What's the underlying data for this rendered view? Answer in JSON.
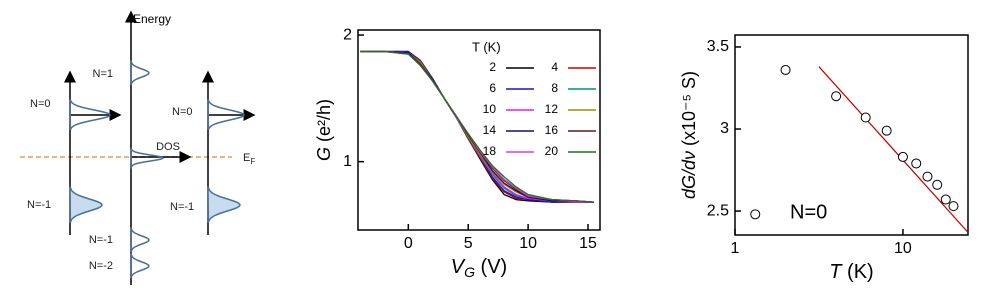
{
  "diagram": {
    "axis_label": "Energy",
    "left": {
      "upper": "N=0",
      "lower": "N=-1"
    },
    "center": {
      "top": "N=1",
      "axis": "DOS",
      "bottom1": "N=-1",
      "bottom2": "N=-2"
    },
    "right": {
      "upper": "N=0",
      "lower": "N=-1"
    },
    "fermi": {
      "symbol": "E",
      "sub": "F"
    }
  },
  "chart_data": [
    {
      "type": "line",
      "xlabel": {
        "symbol": "V",
        "sub": "G",
        "rest": " (V)"
      },
      "ylabel": {
        "symbol": "G",
        "rest": " (e²/h)"
      },
      "legend_title": "T (K)",
      "legend": "upper right",
      "x": [
        -4,
        -2,
        0,
        1,
        2,
        3,
        4,
        5,
        6,
        7,
        8,
        9,
        10,
        12,
        14,
        15.5
      ],
      "xlim": [
        -4.2,
        16
      ],
      "ylim": [
        0.46,
        2.04
      ],
      "xticks": [
        0,
        5,
        10,
        15
      ],
      "yticks": [
        1,
        2
      ],
      "series": [
        {
          "name": "2",
          "color": "#000000",
          "values": [
            1.87,
            1.87,
            1.87,
            1.8,
            1.66,
            1.5,
            1.35,
            1.18,
            1.02,
            0.86,
            0.74,
            0.7,
            0.69,
            0.68,
            0.68,
            0.68
          ]
        },
        {
          "name": "4",
          "color": "#d40000",
          "values": [
            1.87,
            1.87,
            1.87,
            1.8,
            1.66,
            1.5,
            1.35,
            1.18,
            1.03,
            0.87,
            0.76,
            0.71,
            0.7,
            0.68,
            0.68,
            0.68
          ]
        },
        {
          "name": "6",
          "color": "#1414c8",
          "values": [
            1.87,
            1.87,
            1.87,
            1.79,
            1.66,
            1.5,
            1.35,
            1.19,
            1.04,
            0.88,
            0.77,
            0.72,
            0.7,
            0.68,
            0.68,
            0.68
          ]
        },
        {
          "name": "8",
          "color": "#008b8b",
          "values": [
            1.87,
            1.87,
            1.86,
            1.79,
            1.65,
            1.5,
            1.35,
            1.19,
            1.04,
            0.9,
            0.79,
            0.73,
            0.71,
            0.69,
            0.68,
            0.68
          ]
        },
        {
          "name": "10",
          "color": "#e020e0",
          "values": [
            1.87,
            1.87,
            1.86,
            1.78,
            1.65,
            1.5,
            1.35,
            1.2,
            1.05,
            0.91,
            0.8,
            0.74,
            0.71,
            0.69,
            0.68,
            0.68
          ]
        },
        {
          "name": "12",
          "color": "#a08c00",
          "values": [
            1.87,
            1.87,
            1.86,
            1.78,
            1.65,
            1.5,
            1.36,
            1.2,
            1.06,
            0.92,
            0.82,
            0.76,
            0.72,
            0.69,
            0.69,
            0.68
          ]
        },
        {
          "name": "14",
          "color": "#14145a",
          "values": [
            1.87,
            1.87,
            1.86,
            1.77,
            1.65,
            1.5,
            1.36,
            1.21,
            1.07,
            0.93,
            0.83,
            0.77,
            0.72,
            0.69,
            0.69,
            0.68
          ]
        },
        {
          "name": "16",
          "color": "#5a1e1e",
          "values": [
            1.87,
            1.87,
            1.85,
            1.77,
            1.64,
            1.5,
            1.36,
            1.21,
            1.07,
            0.95,
            0.85,
            0.78,
            0.73,
            0.7,
            0.69,
            0.68
          ]
        },
        {
          "name": "18",
          "color": "#e040c8",
          "values": [
            1.87,
            1.87,
            1.85,
            1.76,
            1.64,
            1.5,
            1.36,
            1.22,
            1.08,
            0.96,
            0.86,
            0.79,
            0.73,
            0.7,
            0.69,
            0.68
          ]
        },
        {
          "name": "20",
          "color": "#207020",
          "values": [
            1.87,
            1.87,
            1.85,
            1.76,
            1.64,
            1.5,
            1.36,
            1.22,
            1.09,
            0.97,
            0.88,
            0.8,
            0.74,
            0.7,
            0.69,
            0.68
          ]
        }
      ]
    },
    {
      "type": "scatter",
      "log_x": true,
      "xlabel": {
        "symbol": "T",
        "rest": " (K)"
      },
      "ylabel": {
        "symbol": "dG/dν",
        "rest": " (x10⁻⁵ S)"
      },
      "annotation": "N=0",
      "x": [
        1.32,
        2,
        4,
        6,
        8,
        10,
        12,
        14,
        16,
        18,
        20
      ],
      "y": [
        2.48,
        3.36,
        3.2,
        3.07,
        2.99,
        2.83,
        2.79,
        2.71,
        2.66,
        2.57,
        2.53
      ],
      "color": "#000000",
      "fit": {
        "x": [
          3.16,
          24.4
        ],
        "y": [
          3.38,
          2.37
        ],
        "color": "#c00000"
      },
      "xlim": [
        1,
        24.4
      ],
      "ylim": [
        2.354,
        3.573
      ],
      "xticks": [
        1,
        10
      ],
      "yticks": [
        2.5,
        3,
        3.5
      ]
    }
  ]
}
